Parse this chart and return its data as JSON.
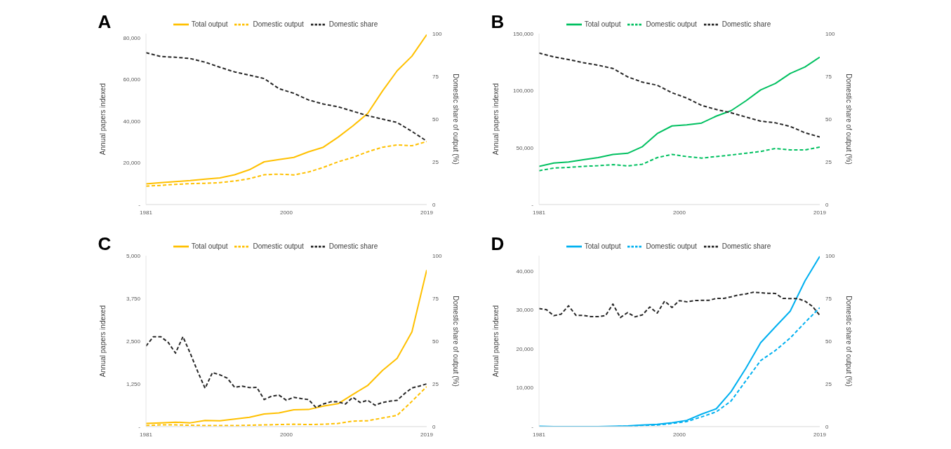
{
  "chart_data": [
    {
      "type": "line",
      "title": "A",
      "ylabel": "Annual papers indexed",
      "y2label": "Domestic share of output (%)",
      "legend": "top",
      "xlim": [
        1981,
        2019
      ],
      "xticks": [
        1981,
        2000,
        2019
      ],
      "ylim": [
        0,
        82000
      ],
      "yticks": [
        {
          "value": 0,
          "label": "-"
        },
        {
          "value": 20000,
          "label": "20,000"
        },
        {
          "value": 40000,
          "label": "40,000"
        },
        {
          "value": 60000,
          "label": "60,000"
        },
        {
          "value": 80000,
          "label": "80,000"
        }
      ],
      "y2lim": [
        0,
        100
      ],
      "y2ticks": [
        0,
        25,
        50,
        75,
        100
      ],
      "x": [
        1981,
        1983,
        1985,
        1987,
        1989,
        1991,
        1993,
        1995,
        1997,
        1999,
        2001,
        2003,
        2005,
        2007,
        2009,
        2011,
        2013,
        2015,
        2017,
        2019
      ],
      "series": [
        {
          "name": "Total output",
          "color": "#ffc000",
          "line_style": "solid",
          "values": [
            9900,
            10500,
            11000,
            11500,
            12200,
            12800,
            14300,
            16700,
            20500,
            21600,
            22600,
            25300,
            27500,
            32300,
            37700,
            43700,
            54400,
            64200,
            71200,
            81500
          ]
        },
        {
          "name": "Domestic output",
          "color": "#ffc000",
          "line_style": "dashed",
          "values": [
            8800,
            9200,
            9700,
            10000,
            10200,
            10500,
            11300,
            12400,
            14300,
            14600,
            14200,
            15600,
            17800,
            20500,
            22600,
            25300,
            27500,
            28600,
            28200,
            30200
          ]
        },
        {
          "name": "Domestic share",
          "color": "#262626",
          "line_style": "dashed",
          "axis": "y2",
          "values": [
            88.8,
            86.6,
            86.2,
            85.4,
            83.3,
            80.3,
            77.6,
            75.7,
            73.7,
            67.8,
            65.1,
            61.2,
            58.8,
            57.2,
            54.6,
            52,
            50,
            48,
            42.8,
            37.1
          ]
        }
      ]
    },
    {
      "type": "line",
      "title": "B",
      "ylabel": "Annual papers indexed",
      "y2label": "Domestic share of output (%)",
      "legend": "top",
      "xlim": [
        1981,
        2019
      ],
      "xticks": [
        1981,
        2000,
        2019
      ],
      "ylim": [
        0,
        150000
      ],
      "yticks": [
        {
          "value": 0,
          "label": "-"
        },
        {
          "value": 50000,
          "label": "50,000"
        },
        {
          "value": 100000,
          "label": "100,000"
        },
        {
          "value": 150000,
          "label": "150,000"
        }
      ],
      "y2lim": [
        0,
        100
      ],
      "y2ticks": [
        0,
        25,
        50,
        75,
        100
      ],
      "x": [
        1981,
        1983,
        1985,
        1987,
        1989,
        1991,
        1993,
        1995,
        1997,
        1999,
        2001,
        2003,
        2005,
        2007,
        2009,
        2011,
        2013,
        2015,
        2017,
        2019
      ],
      "series": [
        {
          "name": "Total output",
          "color": "#00c060",
          "line_style": "solid",
          "values": [
            33500,
            36400,
            37400,
            39300,
            41200,
            44000,
            45000,
            50800,
            62300,
            69000,
            70000,
            71500,
            77600,
            82400,
            91000,
            100600,
            106300,
            115000,
            120700,
            129300
          ]
        },
        {
          "name": "Domestic output",
          "color": "#00c060",
          "line_style": "dashed",
          "values": [
            29700,
            32000,
            32600,
            33500,
            34100,
            35000,
            33900,
            35400,
            41200,
            44000,
            42100,
            40800,
            42100,
            43500,
            45000,
            46600,
            49200,
            47900,
            47900,
            50400
          ]
        },
        {
          "name": "Domestic share",
          "color": "#262626",
          "line_style": "dashed",
          "axis": "y2",
          "values": [
            88.6,
            86.4,
            84.8,
            83,
            81.5,
            79.6,
            74.7,
            71.6,
            69.8,
            65.4,
            62.3,
            58,
            55.6,
            53.7,
            51.2,
            48.8,
            47.8,
            45.7,
            42,
            39.5
          ]
        }
      ]
    },
    {
      "type": "line",
      "title": "C",
      "ylabel": "Annual papers indexed",
      "y2label": "Domestic share of output (%)",
      "legend": "top",
      "xlim": [
        1981,
        2019
      ],
      "xticks": [
        1981,
        2000,
        2019
      ],
      "ylim": [
        0,
        5000
      ],
      "yticks": [
        {
          "value": 0,
          "label": "-"
        },
        {
          "value": 1250,
          "label": "1,250"
        },
        {
          "value": 2500,
          "label": "2,500"
        },
        {
          "value": 3750,
          "label": "3,750"
        },
        {
          "value": 5000,
          "label": "5,000"
        }
      ],
      "y2lim": [
        0,
        100
      ],
      "y2ticks": [
        0,
        25,
        50,
        75,
        100
      ],
      "x": [
        1981,
        1983,
        1985,
        1987,
        1989,
        1991,
        1993,
        1995,
        1997,
        1999,
        2001,
        2003,
        2005,
        2007,
        2009,
        2011,
        2013,
        2015,
        2017,
        2019
      ],
      "series": [
        {
          "name": "Total output",
          "color": "#ffc000",
          "line_style": "solid",
          "values": [
            90,
            110,
            130,
            110,
            180,
            170,
            220,
            270,
            370,
            400,
            490,
            500,
            600,
            670,
            940,
            1200,
            1640,
            2000,
            2770,
            4580
          ]
        },
        {
          "name": "Domestic output",
          "color": "#ffc000",
          "line_style": "dashed",
          "values": [
            30,
            50,
            50,
            40,
            30,
            30,
            30,
            40,
            50,
            60,
            70,
            60,
            70,
            90,
            160,
            170,
            250,
            330,
            740,
            1170
          ]
        },
        {
          "name": "Domestic share",
          "color": "#262626",
          "line_style": "dashed",
          "axis": "y2",
          "x": [
            1981,
            1982,
            1983,
            1984,
            1985,
            1986,
            1987,
            1988,
            1989,
            1990,
            1991,
            1992,
            1993,
            1994,
            1995,
            1996,
            1997,
            1998,
            1999,
            2000,
            2001,
            2002,
            2003,
            2004,
            2005,
            2006,
            2007,
            2008,
            2009,
            2010,
            2011,
            2012,
            2013,
            2014,
            2015,
            2016,
            2017,
            2018,
            2019
          ],
          "values": [
            47.1,
            52.6,
            52.6,
            49.3,
            43,
            52.6,
            42.8,
            32.2,
            22.4,
            31.6,
            30.3,
            28.3,
            23,
            23.7,
            22.8,
            23,
            15.8,
            17.8,
            18.4,
            15.4,
            17.1,
            16.4,
            15.8,
            11.2,
            13.2,
            14.5,
            14.5,
            13.2,
            17.1,
            14.1,
            15.4,
            12.5,
            14.1,
            14.9,
            15.4,
            19.3,
            22.6,
            23.7,
            25
          ]
        }
      ]
    },
    {
      "type": "line",
      "title": "D",
      "ylabel": "Annual papers indexed",
      "y2label": "Domestic share of output (%)",
      "legend": "top",
      "xlim": [
        1981,
        2019
      ],
      "xticks": [
        1981,
        2000,
        2019
      ],
      "ylim": [
        0,
        44000
      ],
      "yticks": [
        {
          "value": 0,
          "label": "-"
        },
        {
          "value": 10000,
          "label": "10,000"
        },
        {
          "value": 20000,
          "label": "20,000"
        },
        {
          "value": 30000,
          "label": "30,000"
        },
        {
          "value": 40000,
          "label": "40,000"
        }
      ],
      "y2lim": [
        0,
        100
      ],
      "y2ticks": [
        0,
        25,
        50,
        75,
        100
      ],
      "x": [
        1981,
        1983,
        1985,
        1987,
        1989,
        1991,
        1993,
        1995,
        1997,
        1999,
        2001,
        2003,
        2005,
        2007,
        2009,
        2011,
        2013,
        2015,
        2017,
        2019
      ],
      "series": [
        {
          "name": "Total output",
          "color": "#00b0f0",
          "line_style": "solid",
          "values": [
            100,
            0,
            0,
            0,
            0,
            100,
            200,
            400,
            600,
            1000,
            1600,
            3200,
            4600,
            9000,
            15000,
            21600,
            25700,
            29700,
            37500,
            43800
          ]
        },
        {
          "name": "Domestic output",
          "color": "#00b0f0",
          "line_style": "dashed",
          "values": [
            0,
            0,
            0,
            0,
            0,
            0,
            100,
            300,
            400,
            800,
            1300,
            2500,
            3800,
            6600,
            11800,
            17000,
            19600,
            22800,
            26800,
            30600
          ]
        },
        {
          "name": "Domestic share",
          "color": "#262626",
          "line_style": "dashed",
          "axis": "y2",
          "x": [
            1981,
            1982,
            1983,
            1984,
            1985,
            1986,
            1987,
            1988,
            1989,
            1990,
            1991,
            1992,
            1993,
            1994,
            1995,
            1996,
            1997,
            1998,
            1999,
            2000,
            2001,
            2002,
            2003,
            2004,
            2005,
            2006,
            2007,
            2008,
            2009,
            2010,
            2011,
            2012,
            2013,
            2014,
            2015,
            2016,
            2017,
            2018,
            2019
          ],
          "values": [
            69.1,
            68.4,
            64.9,
            65.8,
            70.7,
            65.1,
            65.1,
            64.3,
            64.3,
            64.9,
            71.7,
            63.8,
            66.7,
            64.2,
            65.4,
            70,
            66.4,
            73.4,
            69.7,
            73.7,
            73,
            73.7,
            73.9,
            73.9,
            75,
            75,
            75.9,
            77,
            77.6,
            78.6,
            78.3,
            78,
            77.9,
            75,
            74.9,
            74.9,
            73.4,
            70.4,
            65.1
          ]
        }
      ]
    }
  ]
}
